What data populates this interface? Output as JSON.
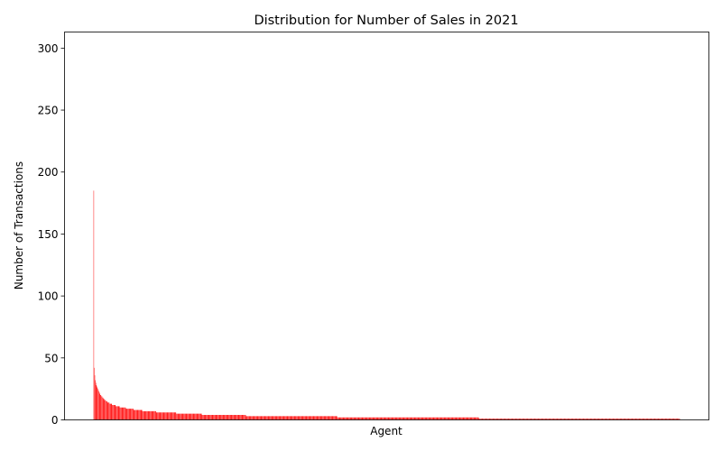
{
  "chart_data": {
    "type": "bar",
    "title": "Distribution for Number of Sales in 2021",
    "xlabel": "Agent",
    "ylabel": "Number of Transactions",
    "ylim": [
      0,
      313
    ],
    "yticks": [
      0,
      50,
      100,
      150,
      200,
      250,
      300
    ],
    "bar_color": "#ff0000",
    "grid": false,
    "legend": "none",
    "x_tick_labels": "hidden",
    "categories_note": "agents sorted by transaction count, descending",
    "values": [
      185,
      42,
      36,
      32,
      30,
      28,
      27,
      26,
      25,
      24,
      23,
      22,
      21,
      20,
      20,
      19,
      19,
      18,
      18,
      17,
      17,
      16,
      16,
      16,
      15,
      15,
      15,
      14,
      14,
      14,
      14,
      13,
      13,
      13,
      13,
      13,
      12,
      12,
      12,
      12,
      12,
      12,
      12,
      11,
      11,
      11,
      11,
      11,
      11,
      11,
      11,
      10,
      10,
      10,
      10,
      10,
      10,
      10,
      10,
      10,
      10,
      10,
      10,
      9,
      9,
      9,
      9,
      9,
      9,
      9,
      9,
      9,
      9,
      9,
      9,
      9,
      9,
      9,
      8,
      8,
      8,
      8,
      8,
      8,
      8,
      8,
      8,
      8,
      8,
      8,
      8,
      8,
      8,
      8,
      8,
      7,
      7,
      7,
      7,
      7,
      7,
      7,
      7,
      7,
      7,
      7,
      7,
      7,
      7,
      7,
      7,
      7,
      7,
      7,
      7,
      7,
      7,
      7,
      7,
      7,
      7,
      7,
      6,
      6,
      6,
      6,
      6,
      6,
      6,
      6,
      6,
      6,
      6,
      6,
      6,
      6,
      6,
      6,
      6,
      6,
      6,
      6,
      6,
      6,
      6,
      6,
      6,
      6,
      6,
      6,
      6,
      6,
      6,
      6,
      6,
      6,
      6,
      6,
      6,
      6,
      6,
      5,
      5,
      5,
      5,
      5,
      5,
      5,
      5,
      5,
      5,
      5,
      5,
      5,
      5,
      5,
      5,
      5,
      5,
      5,
      5,
      5,
      5,
      5,
      5,
      5,
      5,
      5,
      5,
      5,
      5,
      5,
      5,
      5,
      5,
      5,
      5,
      5,
      5,
      5,
      5,
      5,
      5,
      5,
      5,
      5,
      5,
      5,
      5,
      5,
      5,
      4,
      4,
      4,
      4,
      4,
      4,
      4,
      4,
      4,
      4,
      4,
      4,
      4,
      4,
      4,
      4,
      4,
      4,
      4,
      4,
      4,
      4,
      4,
      4,
      4,
      4,
      4,
      4,
      4,
      4,
      4,
      4,
      4,
      4,
      4,
      4,
      4,
      4,
      4,
      4,
      4,
      4,
      4,
      4,
      4,
      4,
      4,
      4,
      4,
      4,
      4,
      4,
      4,
      4,
      4,
      4,
      4,
      4,
      4,
      4,
      4,
      4,
      4,
      4,
      4,
      4,
      4,
      4,
      4,
      4,
      4,
      4,
      4,
      4,
      4,
      4,
      4,
      4,
      4,
      4,
      4,
      4,
      4,
      4,
      4,
      4,
      3,
      3,
      3,
      3,
      3,
      3,
      3,
      3,
      3,
      3,
      3,
      3,
      3,
      3,
      3,
      3,
      3,
      3,
      3,
      3,
      3,
      3,
      3,
      3,
      3,
      3,
      3,
      3,
      3,
      3,
      3,
      3,
      3,
      3,
      3,
      3,
      3,
      3,
      3,
      3,
      3,
      3,
      3,
      3,
      3,
      3,
      3,
      3,
      3,
      3,
      3,
      3,
      3,
      3,
      3,
      3,
      3,
      3,
      3,
      3,
      3,
      3,
      3,
      3,
      3,
      3,
      3,
      3,
      3,
      3,
      3,
      3,
      3,
      3,
      3,
      3,
      3,
      3,
      3,
      3,
      3,
      3,
      3,
      3,
      3,
      3,
      3,
      3,
      3,
      3,
      3,
      3,
      3,
      3,
      3,
      3,
      3,
      3,
      3,
      3,
      3,
      3,
      3,
      3,
      3,
      3,
      3,
      3,
      3,
      3,
      3,
      3,
      3,
      3,
      3,
      3,
      3,
      3,
      3,
      3,
      3,
      3,
      3,
      3,
      3,
      3,
      3,
      3,
      3,
      3,
      3,
      3,
      3,
      3,
      3,
      3,
      3,
      3,
      3,
      3,
      3,
      3,
      3,
      3,
      3,
      3,
      3,
      3,
      3,
      3,
      3,
      3,
      3,
      3,
      3,
      3,
      3,
      3,
      3,
      3,
      3,
      3,
      3,
      3,
      3,
      3,
      3,
      3,
      3,
      3,
      3,
      3,
      3,
      3,
      3,
      3,
      3,
      3,
      2,
      2,
      2,
      2,
      2,
      2,
      2,
      2,
      2,
      2,
      2,
      2,
      2,
      2,
      2,
      2,
      2,
      2,
      2,
      2,
      2,
      2,
      2,
      2,
      2,
      2,
      2,
      2,
      2,
      2,
      2,
      2,
      2,
      2,
      2,
      2,
      2,
      2,
      2,
      2,
      2,
      2,
      2,
      2,
      2,
      2,
      2,
      2,
      2,
      2,
      2,
      2,
      2,
      2,
      2,
      2,
      2,
      2,
      2,
      2,
      2,
      2,
      2,
      2,
      2,
      2,
      2,
      2,
      2,
      2,
      2,
      2,
      2,
      2,
      2,
      2,
      2,
      2,
      2,
      2,
      2,
      2,
      2,
      2,
      2,
      2,
      2,
      2,
      2,
      2,
      2,
      2,
      2,
      2,
      2,
      2,
      2,
      2,
      2,
      2,
      2,
      2,
      2,
      2,
      2,
      2,
      2,
      2,
      2,
      2,
      2,
      2,
      2,
      2,
      2,
      2,
      2,
      2,
      2,
      2,
      2,
      2,
      2,
      2,
      2,
      2,
      2,
      2,
      2,
      2,
      2,
      2,
      2,
      2,
      2,
      2,
      2,
      2,
      2,
      2,
      2,
      2,
      2,
      2,
      2,
      2,
      2,
      2,
      2,
      2,
      2,
      2,
      2,
      2,
      2,
      2,
      2,
      2,
      2,
      2,
      2,
      2,
      2,
      2,
      2,
      2,
      2,
      2,
      2,
      2,
      2,
      2,
      2,
      2,
      2,
      2,
      2,
      2,
      2,
      2,
      2,
      2,
      2,
      2,
      2,
      2,
      2,
      2,
      2,
      2,
      2,
      2,
      2,
      2,
      2,
      2,
      2,
      2,
      2,
      2,
      2,
      2,
      2,
      2,
      2,
      2,
      2,
      2,
      2,
      2,
      2,
      2,
      2,
      2,
      2,
      2,
      2,
      2,
      2,
      2,
      2,
      2,
      2,
      2,
      2,
      2,
      2,
      2,
      2,
      2,
      2,
      2,
      2,
      2,
      2,
      2,
      2,
      2,
      2,
      2,
      2,
      2,
      2,
      2,
      2,
      2,
      2,
      2,
      2,
      2,
      2,
      2,
      2,
      2,
      2,
      2,
      2,
      2,
      2,
      2,
      2,
      2,
      2,
      2,
      2,
      2,
      2,
      2,
      2,
      2,
      2,
      2,
      2,
      2,
      2,
      2,
      1,
      1,
      1,
      1,
      1,
      1,
      1,
      1,
      1,
      1,
      1,
      1,
      1,
      1,
      1,
      1,
      1,
      1,
      1,
      1,
      1,
      1,
      1,
      1,
      1,
      1,
      1,
      1,
      1,
      1,
      1,
      1,
      1,
      1,
      1,
      1,
      1,
      1,
      1,
      1,
      1,
      1,
      1,
      1,
      1,
      1,
      1,
      1,
      1,
      1,
      1,
      1,
      1,
      1,
      1,
      1,
      1,
      1,
      1,
      1,
      1,
      1,
      1,
      1,
      1,
      1,
      1,
      1,
      1,
      1,
      1,
      1,
      1,
      1,
      1,
      1,
      1,
      1,
      1,
      1,
      1,
      1,
      1,
      1,
      1,
      1,
      1,
      1,
      1,
      1,
      1,
      1,
      1,
      1,
      1,
      1,
      1,
      1,
      1,
      1,
      1,
      1,
      1,
      1,
      1,
      1,
      1,
      1,
      1,
      1,
      1,
      1,
      1,
      1,
      1,
      1,
      1,
      1,
      1,
      1,
      1,
      1,
      1,
      1,
      1,
      1,
      1,
      1,
      1,
      1,
      1,
      1,
      1,
      1,
      1,
      1,
      1,
      1,
      1,
      1,
      1,
      1,
      1,
      1,
      1,
      1,
      1,
      1,
      1,
      1,
      1,
      1,
      1,
      1,
      1,
      1,
      1,
      1,
      1,
      1,
      1,
      1,
      1,
      1,
      1,
      1,
      1,
      1,
      1,
      1,
      1,
      1,
      1,
      1,
      1,
      1,
      1,
      1,
      1,
      1,
      1,
      1,
      1,
      1,
      1,
      1,
      1,
      1,
      1,
      1,
      1,
      1,
      1,
      1,
      1,
      1,
      1,
      1,
      1,
      1,
      1,
      1,
      1,
      1,
      1,
      1,
      1,
      1,
      1,
      1,
      1,
      1,
      1,
      1,
      1,
      1,
      1,
      1,
      1,
      1,
      1,
      1,
      1,
      1,
      1,
      1,
      1,
      1,
      1,
      1,
      1,
      1,
      1,
      1,
      1,
      1,
      1,
      1,
      1,
      1,
      1,
      1,
      1,
      1,
      1,
      1,
      1,
      1,
      1,
      1,
      1,
      1,
      1,
      1,
      1,
      1,
      1,
      1,
      1,
      1,
      1,
      1,
      1,
      1,
      1,
      1,
      1,
      1,
      1,
      1,
      1,
      1,
      1,
      1,
      1,
      1,
      1,
      1,
      1,
      1,
      1,
      1,
      1,
      1,
      1,
      1,
      1,
      1,
      1,
      1,
      1,
      1,
      1,
      1,
      1,
      1,
      1,
      1,
      1,
      1,
      1,
      1,
      1,
      1,
      1,
      1,
      1,
      1,
      1,
      1,
      1,
      1,
      1,
      1,
      1,
      1,
      1,
      1,
      1,
      1,
      1,
      1,
      1,
      1,
      1,
      1,
      1,
      1,
      1,
      1,
      1,
      1,
      1,
      1,
      1,
      1,
      1,
      1,
      1,
      1,
      1,
      1,
      1,
      1,
      1,
      1,
      1,
      1,
      1,
      1,
      1,
      1,
      1,
      1,
      1,
      1,
      1,
      1,
      1,
      1,
      1,
      1,
      1,
      1,
      1,
      1,
      1,
      1,
      1,
      1,
      1,
      1,
      1,
      1,
      1,
      1,
      1,
      1,
      1,
      1,
      1,
      1,
      1,
      1,
      1,
      1,
      1,
      1,
      1,
      1,
      1,
      1
    ]
  }
}
